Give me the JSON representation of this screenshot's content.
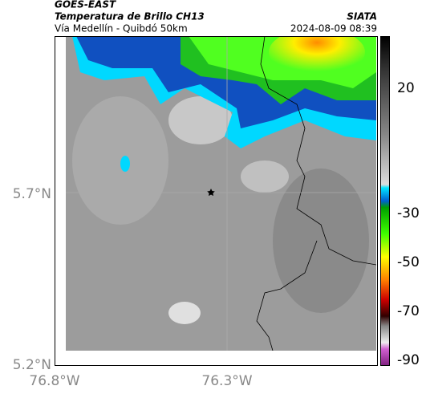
{
  "header": {
    "satellite": "GOES-EAST",
    "product": "Temperatura de Brillo CH13",
    "region": "Vía Medellín - Quibdó 50km",
    "source": "SIATA",
    "datetime": "2024-08-09 08:39"
  },
  "axes": {
    "lat_labels": [
      "5.7°N",
      "5.2°N"
    ],
    "lon_labels": [
      "76.8°W",
      "76.3°W"
    ]
  },
  "colorbar": {
    "labels": [
      20,
      -30,
      -50,
      -70,
      -90
    ]
  }
}
